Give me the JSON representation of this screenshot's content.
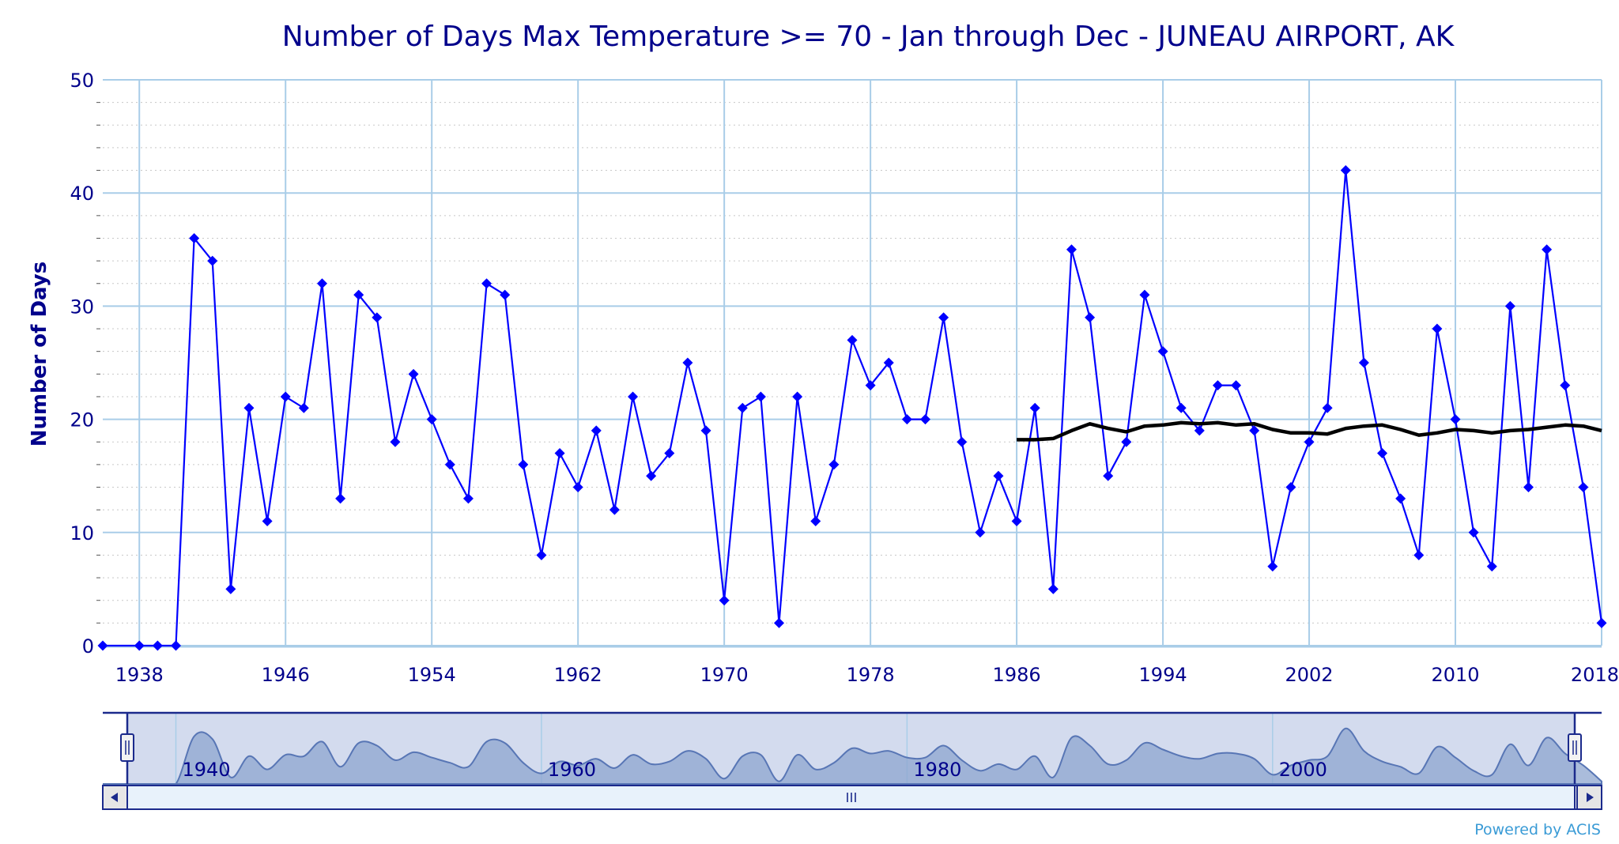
{
  "chart_data": {
    "type": "line",
    "title": "Number of Days Max Temperature >= 70 - Jan through Dec - JUNEAU AIRPORT, AK",
    "ylabel": "Number of Days",
    "xlabel": "",
    "xlim": [
      1936,
      2018
    ],
    "ylim": [
      0,
      50
    ],
    "x_ticks": [
      1938,
      1946,
      1954,
      1962,
      1970,
      1978,
      1986,
      1994,
      2002,
      2010,
      2018
    ],
    "y_ticks": [
      0,
      10,
      20,
      30,
      40,
      50
    ],
    "grid": true,
    "series": [
      {
        "color": "#0000ff",
        "marker": "diamond",
        "x": [
          1936,
          1938,
          1939,
          1940,
          1941,
          1942,
          1943,
          1944,
          1945,
          1946,
          1947,
          1948,
          1949,
          1950,
          1951,
          1952,
          1953,
          1954,
          1955,
          1956,
          1957,
          1958,
          1959,
          1960,
          1961,
          1962,
          1963,
          1964,
          1965,
          1966,
          1967,
          1968,
          1969,
          1970,
          1971,
          1972,
          1973,
          1974,
          1975,
          1976,
          1977,
          1978,
          1979,
          1980,
          1981,
          1982,
          1983,
          1984,
          1985,
          1986,
          1987,
          1988,
          1989,
          1990,
          1991,
          1992,
          1993,
          1994,
          1995,
          1996,
          1997,
          1998,
          1999,
          2000,
          2001,
          2002,
          2003,
          2004,
          2005,
          2006,
          2007,
          2008,
          2009,
          2010,
          2011,
          2012,
          2013,
          2014,
          2015,
          2016,
          2017,
          2018
        ],
        "values": [
          0,
          0,
          0,
          0,
          36,
          34,
          5,
          21,
          11,
          22,
          21,
          32,
          13,
          31,
          29,
          18,
          24,
          20,
          16,
          13,
          32,
          31,
          16,
          8,
          17,
          14,
          19,
          12,
          22,
          15,
          17,
          25,
          19,
          4,
          21,
          22,
          2,
          22,
          11,
          16,
          27,
          23,
          25,
          20,
          20,
          29,
          18,
          10,
          15,
          11,
          21,
          5,
          35,
          29,
          15,
          18,
          31,
          26,
          21,
          19,
          23,
          23,
          19,
          7,
          14,
          18,
          21,
          42,
          25,
          17,
          13,
          8,
          28,
          20,
          10,
          7,
          30,
          14,
          35,
          23,
          14,
          2
        ]
      },
      {
        "color": "#000000",
        "x": [
          1986,
          1987,
          1988,
          1989,
          1990,
          1991,
          1992,
          1993,
          1994,
          1995,
          1996,
          1997,
          1998,
          1999,
          2000,
          2001,
          2002,
          2003,
          2004,
          2005,
          2006,
          2007,
          2008,
          2009,
          2010,
          2011,
          2012,
          2013,
          2014,
          2015,
          2016,
          2017,
          2018
        ],
        "values": [
          18.2,
          18.2,
          18.3,
          19.0,
          19.6,
          19.2,
          18.9,
          19.4,
          19.5,
          19.7,
          19.6,
          19.7,
          19.5,
          19.6,
          19.1,
          18.8,
          18.8,
          18.7,
          19.2,
          19.4,
          19.5,
          19.1,
          18.6,
          18.8,
          19.1,
          19.0,
          18.8,
          19.0,
          19.1,
          19.3,
          19.5,
          19.4,
          19.0
        ]
      }
    ],
    "navigator": {
      "labels": [
        "1940",
        "1960",
        "1980",
        "2000"
      ],
      "label_years": [
        1940,
        1960,
        1980,
        2000
      ]
    },
    "credit": "Powered by ACIS"
  }
}
